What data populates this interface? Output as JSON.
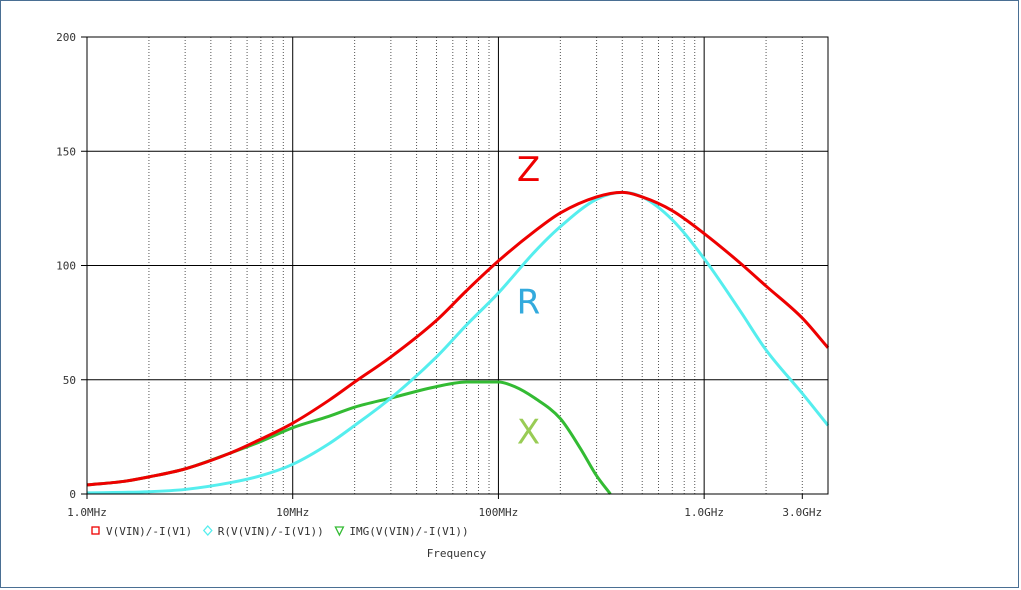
{
  "chart_data": {
    "type": "line",
    "xscale": "log",
    "xlim": [
      1000000,
      4000000000
    ],
    "ylim": [
      0,
      200
    ],
    "grid": true,
    "xlabel": "Frequency",
    "ylabel": "",
    "x_ticks": [
      {
        "value": 1000000,
        "label": "1.0MHz"
      },
      {
        "value": 10000000,
        "label": "10MHz"
      },
      {
        "value": 100000000,
        "label": "100MHz"
      },
      {
        "value": 1000000000,
        "label": "1.0GHz"
      },
      {
        "value": 3000000000,
        "label": "3.0GHz"
      }
    ],
    "y_ticks": [
      {
        "value": 0,
        "label": "0"
      },
      {
        "value": 50,
        "label": "50"
      },
      {
        "value": 100,
        "label": "100"
      },
      {
        "value": 150,
        "label": "150"
      },
      {
        "value": 200,
        "label": "200"
      }
    ],
    "series": [
      {
        "name": "V(VIN)/-I(V1)",
        "marker": "square",
        "color": "#ee0000",
        "points": [
          [
            1000000,
            4
          ],
          [
            1500000,
            5.5
          ],
          [
            2000000,
            7.5
          ],
          [
            3000000,
            11
          ],
          [
            5000000,
            18
          ],
          [
            7000000,
            24
          ],
          [
            10000000,
            31
          ],
          [
            15000000,
            41
          ],
          [
            20000000,
            49
          ],
          [
            30000000,
            60
          ],
          [
            50000000,
            76
          ],
          [
            70000000,
            89
          ],
          [
            100000000,
            102
          ],
          [
            150000000,
            115
          ],
          [
            200000000,
            123
          ],
          [
            300000000,
            130
          ],
          [
            400000000,
            132
          ],
          [
            500000000,
            130
          ],
          [
            700000000,
            124
          ],
          [
            1000000000,
            114
          ],
          [
            1500000000,
            101
          ],
          [
            2000000000,
            91
          ],
          [
            3000000000,
            77
          ],
          [
            4000000000,
            64
          ]
        ]
      },
      {
        "name": "R(V(VIN)/-I(V1))",
        "marker": "diamond",
        "color": "#55eeee",
        "points": [
          [
            1000000,
            0.5
          ],
          [
            2000000,
            1
          ],
          [
            3000000,
            2
          ],
          [
            5000000,
            5
          ],
          [
            7000000,
            8
          ],
          [
            10000000,
            13
          ],
          [
            15000000,
            22
          ],
          [
            20000000,
            30
          ],
          [
            30000000,
            42
          ],
          [
            50000000,
            60
          ],
          [
            70000000,
            74
          ],
          [
            100000000,
            88
          ],
          [
            150000000,
            106
          ],
          [
            200000000,
            117
          ],
          [
            300000000,
            129
          ],
          [
            400000000,
            132
          ],
          [
            500000000,
            130
          ],
          [
            700000000,
            120
          ],
          [
            1000000000,
            103
          ],
          [
            1500000000,
            80
          ],
          [
            2000000000,
            63
          ],
          [
            3000000000,
            44
          ],
          [
            4000000000,
            30
          ]
        ]
      },
      {
        "name": "IMG(V(VIN)/-I(V1))",
        "marker": "triangle",
        "color": "#33bb33",
        "points": [
          [
            1000000,
            4
          ],
          [
            1500000,
            5.5
          ],
          [
            2000000,
            7.5
          ],
          [
            3000000,
            11
          ],
          [
            5000000,
            18
          ],
          [
            7000000,
            23
          ],
          [
            10000000,
            29
          ],
          [
            15000000,
            34
          ],
          [
            20000000,
            38
          ],
          [
            30000000,
            42
          ],
          [
            50000000,
            47
          ],
          [
            70000000,
            49
          ],
          [
            100000000,
            49
          ],
          [
            120000000,
            47
          ],
          [
            150000000,
            42
          ],
          [
            200000000,
            33
          ],
          [
            250000000,
            20
          ],
          [
            300000000,
            8
          ],
          [
            350000000,
            0
          ]
        ]
      }
    ],
    "annotations": [
      {
        "text": "Z",
        "x": 140000000,
        "y": 137,
        "color": "#ee0000"
      },
      {
        "text": "R",
        "x": 140000000,
        "y": 79,
        "color": "#33aadd"
      },
      {
        "text": "X",
        "x": 140000000,
        "y": 22,
        "color": "#99cc55"
      }
    ]
  }
}
